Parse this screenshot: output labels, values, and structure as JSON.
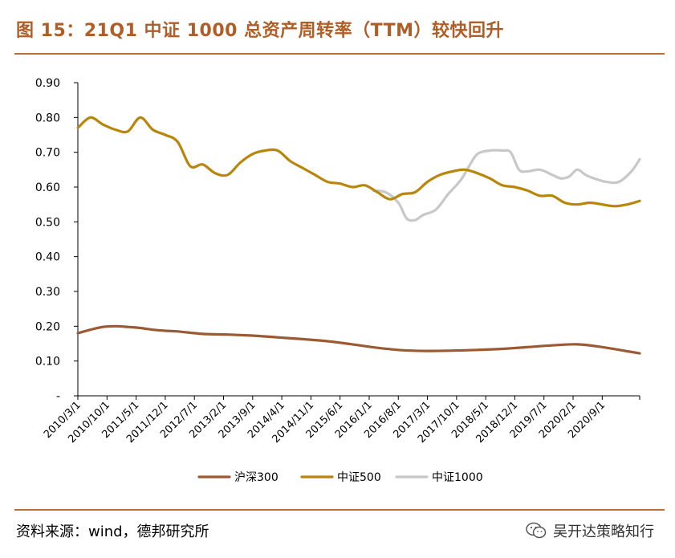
{
  "header": {
    "title": "图 15：21Q1 中证 1000 总资产周转率（TTM）较快回升"
  },
  "footer": {
    "source": "资料来源：wind，德邦研究所",
    "watermark": "吴开达策略知行"
  },
  "chart_data": {
    "type": "line",
    "title": "图 15：21Q1 中证 1000 总资产周转率（TTM）较快回升",
    "ylim": [
      0,
      0.9
    ],
    "yticks": [
      0,
      0.1,
      0.2,
      0.3,
      0.4,
      0.5,
      0.6,
      0.7,
      0.8,
      0.9
    ],
    "ytick_labels": [
      "-",
      "0.10",
      "0.20",
      "0.30",
      "0.40",
      "0.50",
      "0.60",
      "0.70",
      "0.80",
      "0.90"
    ],
    "x_categories": [
      "2010/3/1",
      "2010/10/1",
      "2011/5/1",
      "2011/12/1",
      "2012/7/1",
      "2013/2/1",
      "2013/9/1",
      "2014/4/1",
      "2014/11/1",
      "2015/6/1",
      "2016/1/1",
      "2016/8/1",
      "2017/3/1",
      "2017/10/1",
      "2018/5/1",
      "2018/12/1",
      "2019/7/1",
      "2020/2/1",
      "2020/9/1"
    ],
    "x_months_range": [
      0,
      135
    ],
    "grid": false,
    "legend_position": "bottom",
    "series": [
      {
        "name": "沪深300",
        "color": "#9b5a33",
        "x": [
          0,
          3,
          6,
          9,
          12,
          15,
          18,
          21,
          24,
          30,
          36,
          42,
          48,
          54,
          60,
          66,
          72,
          78,
          84,
          90,
          96,
          102,
          108,
          114,
          120,
          126,
          132,
          135
        ],
        "y": [
          0.18,
          0.19,
          0.198,
          0.2,
          0.198,
          0.195,
          0.19,
          0.187,
          0.185,
          0.178,
          0.176,
          0.173,
          0.168,
          0.163,
          0.157,
          0.148,
          0.138,
          0.131,
          0.129,
          0.13,
          0.132,
          0.135,
          0.14,
          0.145,
          0.148,
          0.14,
          0.128,
          0.122
        ]
      },
      {
        "name": "中证500",
        "color": "#b8860b",
        "x": [
          0,
          3,
          6,
          9,
          12,
          15,
          18,
          21,
          24,
          27,
          30,
          33,
          36,
          39,
          42,
          45,
          48,
          51,
          54,
          57,
          60,
          63,
          66,
          69,
          72,
          75,
          78,
          81,
          84,
          87,
          90,
          93,
          96,
          99,
          102,
          105,
          108,
          111,
          114,
          117,
          120,
          123,
          126,
          129,
          132,
          135
        ],
        "y": [
          0.77,
          0.8,
          0.78,
          0.765,
          0.76,
          0.8,
          0.765,
          0.75,
          0.73,
          0.66,
          0.665,
          0.64,
          0.635,
          0.67,
          0.695,
          0.705,
          0.705,
          0.675,
          0.655,
          0.635,
          0.615,
          0.61,
          0.6,
          0.605,
          0.585,
          0.565,
          0.58,
          0.585,
          0.615,
          0.635,
          0.645,
          0.65,
          0.64,
          0.625,
          0.605,
          0.6,
          0.59,
          0.575,
          0.575,
          0.555,
          0.55,
          0.555,
          0.55,
          0.545,
          0.55,
          0.56
        ]
      },
      {
        "name": "中证1000",
        "color": "#c8c8c8",
        "x": [
          71,
          74,
          77,
          79,
          81,
          83,
          86,
          89,
          92,
          94,
          96,
          99,
          102,
          104,
          106,
          108,
          111,
          114,
          116,
          118,
          120,
          122,
          124,
          127,
          130,
          133,
          135
        ],
        "y": [
          0.59,
          0.585,
          0.555,
          0.51,
          0.505,
          0.52,
          0.535,
          0.58,
          0.62,
          0.66,
          0.695,
          0.705,
          0.705,
          0.7,
          0.65,
          0.645,
          0.65,
          0.635,
          0.625,
          0.63,
          0.65,
          0.635,
          0.625,
          0.615,
          0.615,
          0.645,
          0.68
        ]
      }
    ]
  }
}
